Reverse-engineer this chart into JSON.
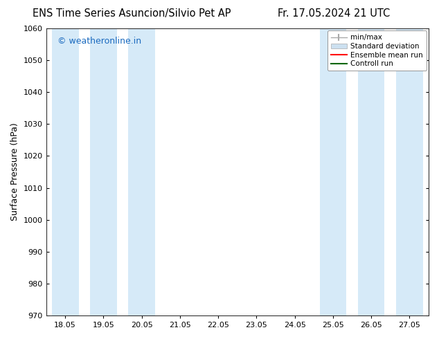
{
  "title_left": "ENS Time Series Asuncion/Silvio Pet AP",
  "title_right": "Fr. 17.05.2024 21 UTC",
  "ylabel": "Surface Pressure (hPa)",
  "ylim": [
    970,
    1060
  ],
  "yticks": [
    970,
    980,
    990,
    1000,
    1010,
    1020,
    1030,
    1040,
    1050,
    1060
  ],
  "xtick_labels": [
    "18.05",
    "19.05",
    "20.05",
    "21.05",
    "22.05",
    "23.05",
    "24.05",
    "25.05",
    "26.05",
    "27.05"
  ],
  "watermark": "© weatheronline.in",
  "watermark_color": "#1a6abf",
  "bg_color": "#ffffff",
  "band_color": "#d6eaf8",
  "shaded_indices": [
    0,
    2,
    7,
    9
  ],
  "legend_labels": [
    "min/max",
    "Standard deviation",
    "Ensemble mean run",
    "Controll run"
  ],
  "legend_colors": [
    "#999999",
    "#cce0f0",
    "#ff0000",
    "#006600"
  ],
  "font_family": "DejaVu Sans",
  "title_fontsize": 10.5,
  "axis_label_fontsize": 9,
  "tick_fontsize": 8,
  "watermark_fontsize": 9,
  "legend_fontsize": 7.5
}
